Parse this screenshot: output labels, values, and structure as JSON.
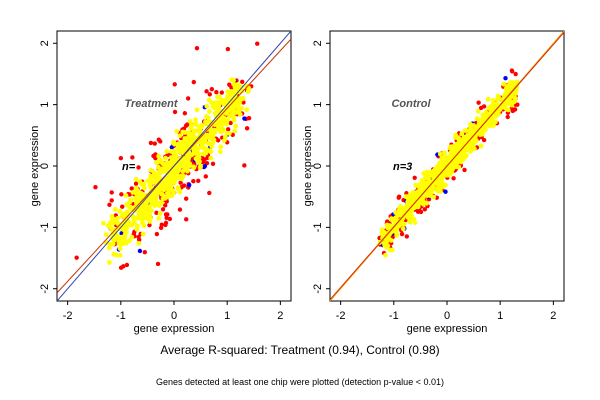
{
  "chart_data": [
    {
      "type": "scatter",
      "title": "Treatment",
      "n_label": "n=",
      "xlabel": "gene expression",
      "ylabel": "gene expression",
      "xlim": [
        -2.2,
        2.2
      ],
      "ylim": [
        -2.2,
        2.2
      ],
      "xticks": [
        -2,
        -1,
        0,
        1,
        2
      ],
      "yticks": [
        -2,
        -1,
        0,
        1,
        2
      ],
      "grid": false,
      "colors": {
        "red": "#ff0000",
        "blue": "#0000ff",
        "yellow": "#ffff00",
        "fit_red": "#cc3300",
        "fit_blue": "#3344aa"
      },
      "point_cloud": {
        "center": [
          0.0,
          -0.05
        ],
        "x_range": [
          -1.1,
          1.2
        ],
        "spread_yellow": 0.18,
        "spread_red": 0.38
      },
      "lines": [
        {
          "color": "#cc3300",
          "slope": 0.94,
          "intercept": 0.0
        },
        {
          "color": "#3344aa",
          "slope": 1.0,
          "intercept": 0.0
        }
      ]
    },
    {
      "type": "scatter",
      "title": "Control",
      "n_label": "n=3",
      "xlabel": "gene expression",
      "ylabel": "gene expression",
      "xlim": [
        -2.2,
        2.2
      ],
      "ylim": [
        -2.2,
        2.2
      ],
      "xticks": [
        -2,
        -1,
        0,
        1,
        2
      ],
      "yticks": [
        -2,
        -1,
        0,
        1,
        2
      ],
      "grid": false,
      "colors": {
        "red": "#ff0000",
        "blue": "#0000ff",
        "yellow": "#ffff00",
        "fit_red": "#cc3300",
        "fit_blue": "#ff9900"
      },
      "point_cloud": {
        "center": [
          0.0,
          0.0
        ],
        "x_range": [
          -1.15,
          1.2
        ],
        "spread_yellow": 0.1,
        "spread_red": 0.14
      },
      "lines": [
        {
          "color": "#ff9900",
          "slope": 1.0,
          "intercept": 0.0
        },
        {
          "color": "#cc3300",
          "slope": 0.99,
          "intercept": 0.0
        }
      ]
    }
  ],
  "caption": "Average R-squared: Treatment (0.94), Control (0.98)",
  "note": "Genes detected at least one chip were plotted (detection p-value < 0.01)"
}
